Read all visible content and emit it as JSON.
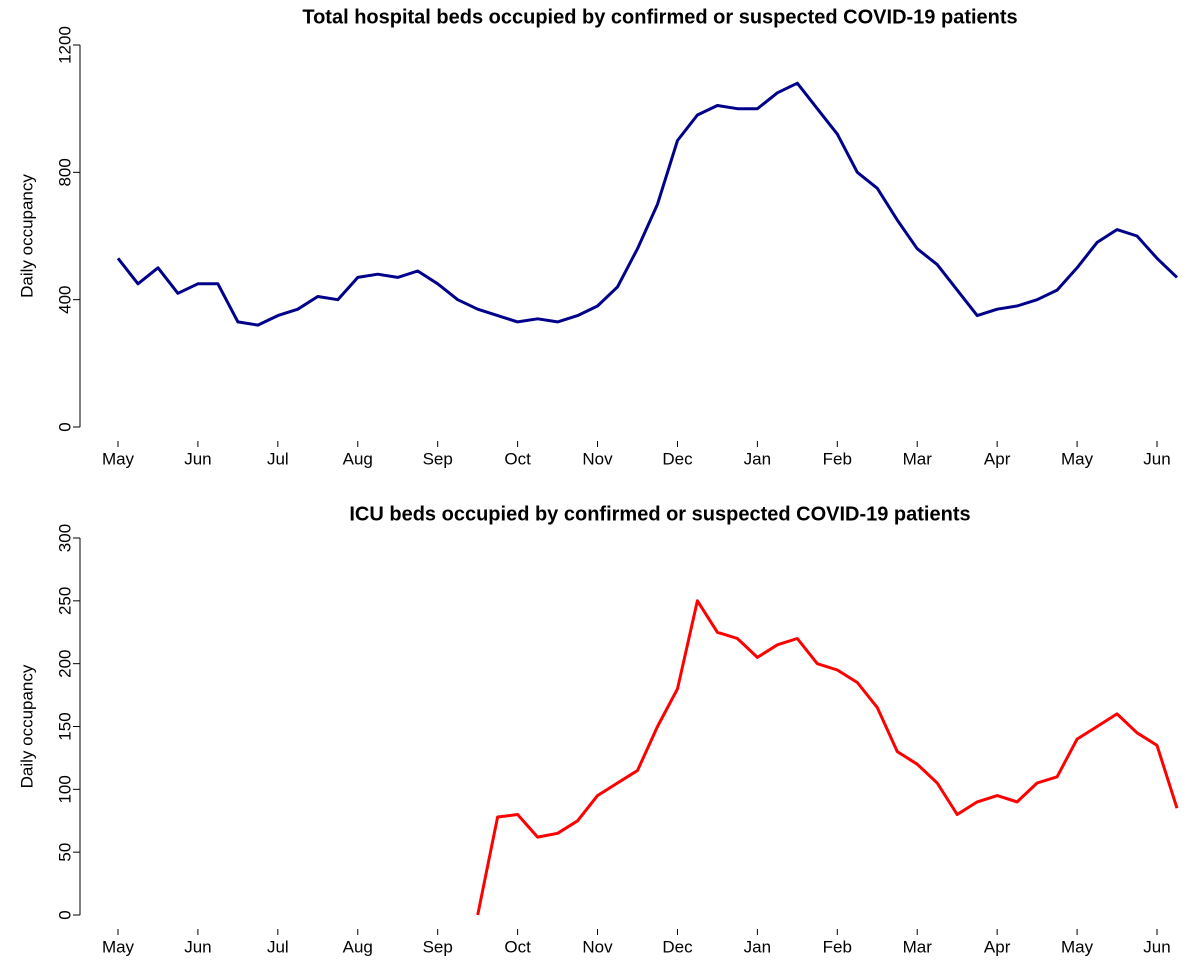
{
  "chart_data": [
    {
      "type": "line",
      "title": "Total hospital beds occupied by confirmed or suspected COVID-19 patients",
      "y_label": "Daily occupancy",
      "categories": [
        "May",
        null,
        null,
        null,
        "Jun",
        null,
        null,
        null,
        "Jul",
        null,
        null,
        null,
        "Aug",
        null,
        null,
        null,
        "Sep",
        null,
        null,
        null,
        "Oct",
        null,
        null,
        null,
        "Nov",
        null,
        null,
        null,
        "Dec",
        null,
        null,
        null,
        "Jan",
        null,
        null,
        null,
        "Feb",
        null,
        null,
        null,
        "Mar",
        null,
        null,
        null,
        "Apr",
        null,
        null,
        null,
        "May",
        null,
        null,
        null,
        "Jun",
        null
      ],
      "values": [
        530,
        450,
        500,
        420,
        450,
        450,
        330,
        320,
        350,
        370,
        410,
        400,
        470,
        480,
        470,
        490,
        450,
        400,
        370,
        350,
        330,
        340,
        330,
        350,
        380,
        440,
        560,
        700,
        900,
        980,
        1010,
        1000,
        1000,
        1050,
        1080,
        1000,
        920,
        800,
        750,
        650,
        560,
        510,
        430,
        350,
        370,
        380,
        400,
        430,
        500,
        580,
        620,
        600,
        530,
        470
      ],
      "color": "#00008b",
      "ylim": [
        0,
        1200
      ],
      "yticks": [
        0,
        400,
        800,
        1200
      ]
    },
    {
      "type": "line",
      "title": "ICU beds occupied by confirmed or suspected COVID-19 patients",
      "y_label": "Daily occupancy",
      "categories": [
        "May",
        null,
        null,
        null,
        "Jun",
        null,
        null,
        null,
        "Jul",
        null,
        null,
        null,
        "Aug",
        null,
        null,
        null,
        "Sep",
        null,
        null,
        null,
        "Oct",
        null,
        null,
        null,
        "Nov",
        null,
        null,
        null,
        "Dec",
        null,
        null,
        null,
        "Jan",
        null,
        null,
        null,
        "Feb",
        null,
        null,
        null,
        "Mar",
        null,
        null,
        null,
        "Apr",
        null,
        null,
        null,
        "May",
        null,
        null,
        null,
        "Jun",
        null
      ],
      "values": [
        null,
        null,
        null,
        null,
        null,
        null,
        null,
        null,
        null,
        null,
        null,
        null,
        null,
        null,
        null,
        null,
        null,
        null,
        0,
        78,
        80,
        62,
        65,
        75,
        95,
        105,
        115,
        150,
        180,
        250,
        225,
        220,
        205,
        215,
        220,
        200,
        195,
        185,
        165,
        130,
        120,
        105,
        80,
        90,
        95,
        90,
        105,
        110,
        140,
        150,
        160,
        145,
        135,
        85
      ],
      "color": "#ff0000",
      "ylim": [
        0,
        300
      ],
      "yticks": [
        0,
        50,
        100,
        150,
        200,
        250,
        300
      ]
    }
  ]
}
